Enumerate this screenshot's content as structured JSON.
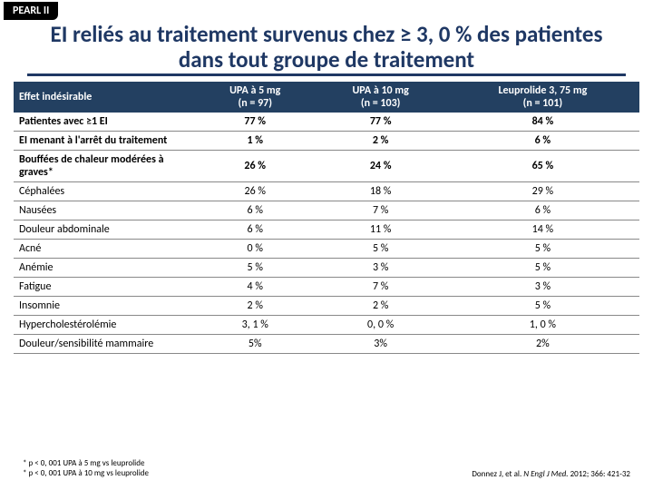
{
  "badge": "PEARL II",
  "title": "EI reliés au traitement survenus chez ≥ 3, 0 % des patientes dans tout groupe de traitement",
  "headers": {
    "c0": "Effet indésirable",
    "c1a": "UPA à 5 mg",
    "c1b": "(n = 97)",
    "c2a": "UPA à 10 mg",
    "c2b": "(n = 103)",
    "c3a": "Leuprolide 3, 75 mg",
    "c3b": "(n = 101)"
  },
  "rows": [
    {
      "bold": true,
      "c0": "Patientes avec ≥1 EI",
      "c1": "77 %",
      "c2": "77 %",
      "c3": "84 %"
    },
    {
      "bold": true,
      "c0": "EI menant à l'arrêt du traitement",
      "c1": "1 %",
      "c2": "2 %",
      "c3": "6 %"
    },
    {
      "bold": true,
      "c0": "Bouffées de chaleur modérées à graves*",
      "c1": "26 %",
      "c2": "24 %",
      "c3": "65 %"
    },
    {
      "bold": false,
      "c0": "Céphalées",
      "c1": "26 %",
      "c2": "18 %",
      "c3": "29 %"
    },
    {
      "bold": false,
      "c0": "Nausées",
      "c1": "6 %",
      "c2": "7 %",
      "c3": "6 %"
    },
    {
      "bold": false,
      "c0": "Douleur abdominale",
      "c1": "6 %",
      "c2": "11 %",
      "c3": "14 %"
    },
    {
      "bold": false,
      "c0": "Acné",
      "c1": "0 %",
      "c2": "5 %",
      "c3": "5 %"
    },
    {
      "bold": false,
      "c0": "Anémie",
      "c1": "5 %",
      "c2": "3 %",
      "c3": "5 %"
    },
    {
      "bold": false,
      "c0": "Fatigue",
      "c1": "4 %",
      "c2": "7 %",
      "c3": "3 %"
    },
    {
      "bold": false,
      "c0": "Insomnie",
      "c1": "2 %",
      "c2": "2 %",
      "c3": "5 %"
    },
    {
      "bold": false,
      "c0": "Hypercholestérolémie",
      "c1": "3, 1 %",
      "c2": "0, 0 %",
      "c3": "1, 0 %"
    },
    {
      "bold": false,
      "c0": "Douleur/sensibilité mammaire",
      "c1": "5%",
      "c2": "3%",
      "c3": "2%"
    }
  ],
  "foot1": "* p < 0, 001 UPA à 5 mg vs leuprolide",
  "foot2": "* p < 0, 001 UPA à 10 mg vs leuprolide",
  "cite1": "Donnez J, et al. ",
  "cite2": "N Engl J Med.",
  "cite3": " 2012; 366: 421-32"
}
